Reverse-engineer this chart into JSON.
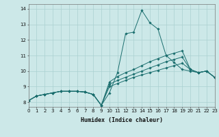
{
  "xlabel": "Humidex (Indice chaleur)",
  "xlim": [
    0,
    23
  ],
  "ylim": [
    7.7,
    14.3
  ],
  "yticks": [
    8,
    9,
    10,
    11,
    12,
    13,
    14
  ],
  "xticks": [
    0,
    1,
    2,
    3,
    4,
    5,
    6,
    7,
    8,
    9,
    10,
    11,
    12,
    13,
    14,
    15,
    16,
    17,
    18,
    19,
    20,
    21,
    22,
    23
  ],
  "bg_color": "#cce8e8",
  "grid_color": "#aad0d0",
  "line_color": "#1a6e6e",
  "curves": [
    [
      8.1,
      8.4,
      8.5,
      8.6,
      8.7,
      8.7,
      8.7,
      8.65,
      8.5,
      7.8,
      8.6,
      9.9,
      12.4,
      12.5,
      13.9,
      13.1,
      12.7,
      11.0,
      10.55,
      10.1,
      10.0,
      9.9,
      10.0,
      9.6
    ],
    [
      8.1,
      8.4,
      8.5,
      8.6,
      8.7,
      8.7,
      8.7,
      8.65,
      8.5,
      7.8,
      9.3,
      9.65,
      9.9,
      10.1,
      10.35,
      10.6,
      10.8,
      11.0,
      11.15,
      11.3,
      10.1,
      9.9,
      10.0,
      9.6
    ],
    [
      8.1,
      8.4,
      8.5,
      8.6,
      8.7,
      8.7,
      8.7,
      8.65,
      8.5,
      7.8,
      9.15,
      9.4,
      9.6,
      9.8,
      10.0,
      10.2,
      10.4,
      10.6,
      10.75,
      10.9,
      10.1,
      9.9,
      10.0,
      9.6
    ],
    [
      8.1,
      8.4,
      8.5,
      8.6,
      8.7,
      8.7,
      8.7,
      8.65,
      8.5,
      7.8,
      9.0,
      9.2,
      9.4,
      9.6,
      9.75,
      9.9,
      10.05,
      10.2,
      10.35,
      10.5,
      10.1,
      9.9,
      10.0,
      9.6
    ]
  ]
}
